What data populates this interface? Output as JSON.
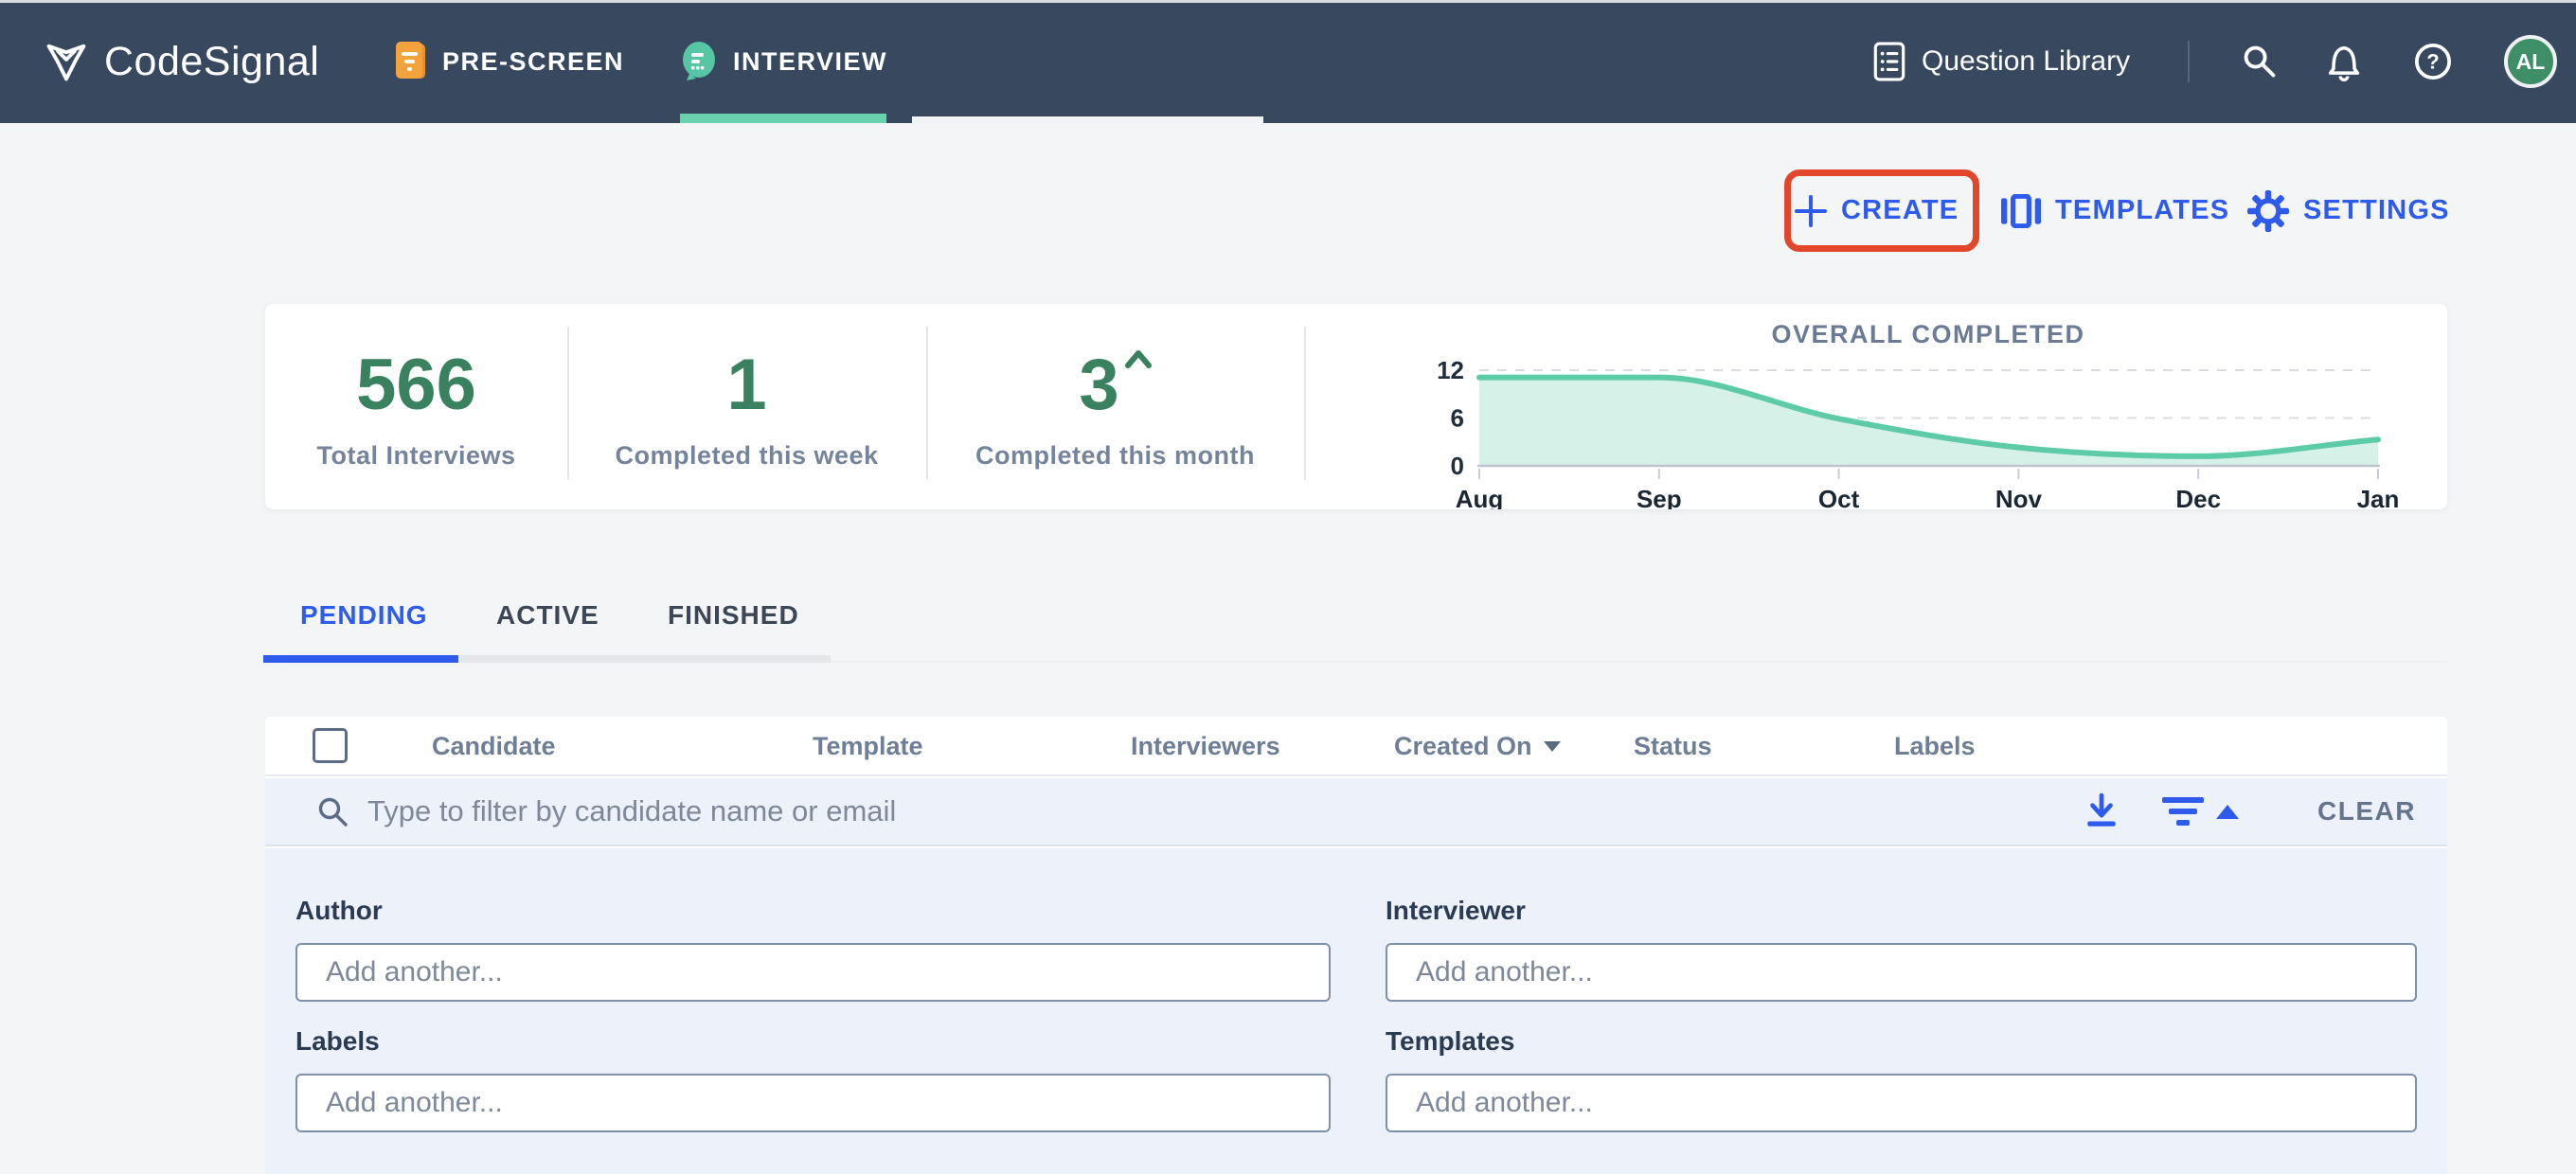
{
  "nav": {
    "brand": "CodeSignal",
    "items": [
      {
        "label": "PRE-SCREEN",
        "active": false
      },
      {
        "label": "INTERVIEW",
        "active": true
      }
    ],
    "question_library_label": "Question Library",
    "icons": [
      "list-icon",
      "search-icon",
      "bell-icon",
      "help-icon"
    ],
    "avatar_initials": "AL"
  },
  "actions": {
    "create_label": "CREATE",
    "templates_label": "TEMPLATES",
    "settings_label": "SETTINGS",
    "create_highlighted": true,
    "highlight_color": "#e2472b"
  },
  "stats": [
    {
      "value": "566",
      "label": "Total Interviews"
    },
    {
      "value": "1",
      "label": "Completed this week"
    },
    {
      "value": "3",
      "trend": "up",
      "trend_icon": "caret-up-icon",
      "label": "Completed this month"
    }
  ],
  "chart_data": {
    "type": "area",
    "title": "OVERALL COMPLETED",
    "x": [
      "Aug",
      "Sep",
      "Oct",
      "Nov",
      "Dec",
      "Jan"
    ],
    "values": [
      11.1,
      11.1,
      5.9,
      2.3,
      1.2,
      3.3
    ],
    "yticks": [
      0,
      6,
      12
    ],
    "ylim": [
      0,
      12
    ],
    "grid": "dashed-horizontal",
    "legend": "none",
    "line_color": "#5ecba8",
    "fill_color": "#d6f2e8"
  },
  "tabs": [
    {
      "label": "PENDING",
      "active": true
    },
    {
      "label": "ACTIVE",
      "active": false
    },
    {
      "label": "FINISHED",
      "active": false
    }
  ],
  "table": {
    "columns": [
      {
        "label": "Candidate"
      },
      {
        "label": "Template"
      },
      {
        "label": "Interviewers"
      },
      {
        "label": "Created On",
        "sort": "desc"
      },
      {
        "label": "Status"
      },
      {
        "label": "Labels"
      }
    ],
    "filter_placeholder": "Type to filter by candidate name or email",
    "clear_label": "CLEAR",
    "rows": []
  },
  "filters": [
    {
      "label": "Author",
      "placeholder": "Add another..."
    },
    {
      "label": "Interviewer",
      "placeholder": "Add another..."
    },
    {
      "label": "Labels",
      "placeholder": "Add another..."
    },
    {
      "label": "Templates",
      "placeholder": "Add another..."
    }
  ],
  "colors": {
    "navbar": "#37485f",
    "accent_blue": "#2e5bec",
    "teal": "#5ecba8",
    "stat_green": "#3a8160",
    "highlight_red": "#e2472b",
    "panel_bg": "#edf1f9"
  }
}
